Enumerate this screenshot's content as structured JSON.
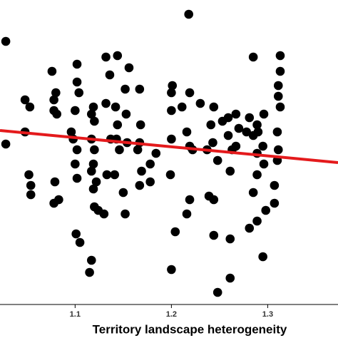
{
  "chart_data": {
    "type": "scatter",
    "x_label": "Territory landscape heterogeneity",
    "xlim": [
      1.022,
      1.373
    ],
    "xticks": [
      1.1,
      1.2,
      1.3
    ],
    "ylim": [
      0,
      427
    ],
    "color": "#000000",
    "x": [
      1.028,
      1.218,
      1.028,
      1.048,
      1.048,
      1.053,
      1.052,
      1.054,
      1.054,
      1.076,
      1.08,
      1.078,
      1.078,
      1.081,
      1.079,
      1.078,
      1.083,
      1.102,
      1.102,
      1.104,
      1.1,
      1.096,
      1.098,
      1.102,
      1.1,
      1.102,
      1.101,
      1.105,
      1.119,
      1.117,
      1.12,
      1.117,
      1.12,
      1.119,
      1.117,
      1.122,
      1.119,
      1.12,
      1.124,
      1.13,
      1.117,
      1.115,
      1.132,
      1.136,
      1.132,
      1.137,
      1.133,
      1.144,
      1.142,
      1.144,
      1.143,
      1.146,
      1.141,
      1.15,
      1.152,
      1.156,
      1.152,
      1.153,
      1.154,
      1.167,
      1.165,
      1.168,
      1.167,
      1.167,
      1.169,
      1.178,
      1.178,
      1.184,
      1.201,
      1.2,
      1.2,
      1.2,
      1.199,
      1.211,
      1.216,
      1.219,
      1.219,
      1.216,
      1.204,
      1.2,
      1.219,
      1.222,
      1.23,
      1.237,
      1.239,
      1.244,
      1.241,
      1.243,
      1.248,
      1.244,
      1.244,
      1.248,
      1.253,
      1.259,
      1.259,
      1.263,
      1.261,
      1.261,
      1.261,
      1.267,
      1.267,
      1.27,
      1.278,
      1.281,
      1.285,
      1.285,
      1.289,
      1.289,
      1.285,
      1.281,
      1.289,
      1.296,
      1.295,
      1.296,
      1.298,
      1.295,
      1.313,
      1.313,
      1.311,
      1.311,
      1.313,
      1.31,
      1.311,
      1.31,
      1.307,
      1.307,
      1.289,
      1.29
    ],
    "values": [
      369,
      407,
      225,
      287,
      242,
      277,
      182,
      167,
      154,
      327,
      297,
      287,
      272,
      267,
      172,
      142,
      147,
      337,
      312,
      297,
      272,
      242,
      232,
      217,
      197,
      177,
      99,
      87,
      277,
      267,
      257,
      232,
      217,
      197,
      187,
      172,
      162,
      137,
      132,
      127,
      62,
      45,
      347,
      322,
      282,
      232,
      182,
      349,
      277,
      252,
      232,
      217,
      182,
      157,
      127,
      332,
      302,
      267,
      227,
      227,
      217,
      252,
      302,
      167,
      187,
      197,
      172,
      212,
      307,
      297,
      272,
      232,
      182,
      277,
      242,
      222,
      147,
      127,
      102,
      49,
      297,
      217,
      282,
      217,
      152,
      277,
      252,
      227,
      202,
      147,
      97,
      17,
      257,
      262,
      237,
      217,
      187,
      92,
      37,
      267,
      222,
      247,
      242,
      262,
      347,
      237,
      212,
      182,
      157,
      107,
      117,
      267,
      222,
      197,
      132,
      67,
      349,
      327,
      307,
      292,
      277,
      242,
      217,
      202,
      167,
      142,
      252,
      242
    ],
    "trend_line": {
      "x": [
        1.022,
        1.373
      ],
      "values": [
        244,
        199
      ],
      "color": "#e41a1c"
    }
  }
}
